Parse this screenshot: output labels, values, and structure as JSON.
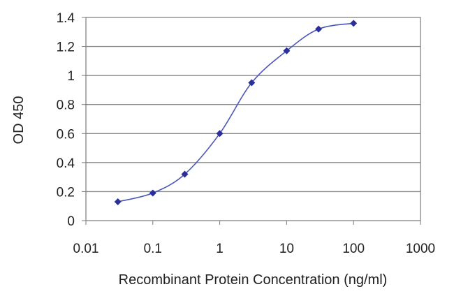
{
  "chart_data": {
    "type": "scatter",
    "title": "",
    "xlabel": "Recombinant Protein Concentration (ng/ml)",
    "ylabel": "OD 450",
    "xscale": "log",
    "xlim": [
      0.01,
      1000
    ],
    "ylim": [
      0,
      1.4
    ],
    "x_ticks": [
      "0.01",
      "0.1",
      "1",
      "10",
      "100",
      "1000"
    ],
    "y_ticks": [
      "0",
      "0.2",
      "0.4",
      "0.6",
      "0.8",
      "1",
      "1.2",
      "1.4"
    ],
    "grid": "horizontal",
    "series": [
      {
        "color": "#2a2f9a",
        "x": [
          0.03,
          0.1,
          0.3,
          1,
          3,
          10,
          30,
          100
        ],
        "y": [
          0.13,
          0.19,
          0.32,
          0.6,
          0.95,
          1.17,
          1.32,
          1.36
        ]
      }
    ]
  }
}
